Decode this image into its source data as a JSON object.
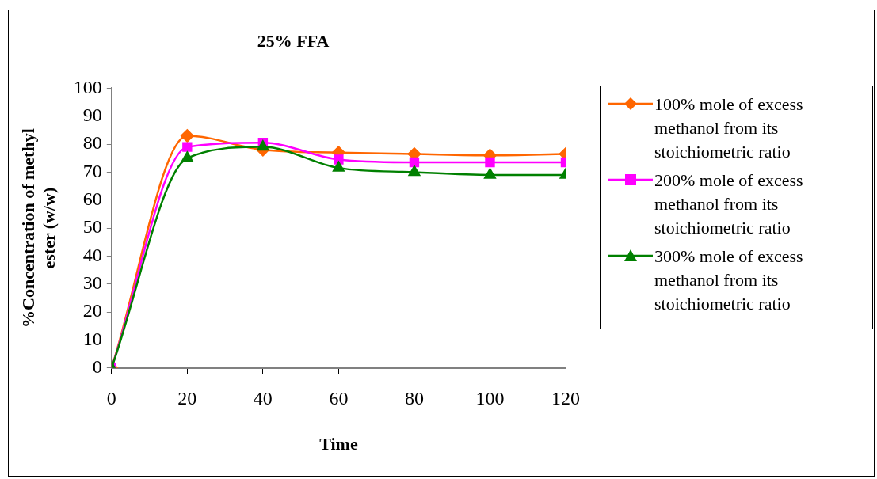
{
  "chart_data": {
    "type": "line",
    "title": "25% FFA",
    "xlabel": "Time",
    "ylabel": "%Concentration of methyl ester (w/w)",
    "x": [
      0,
      20,
      40,
      60,
      80,
      100,
      120
    ],
    "xlim": [
      0,
      120
    ],
    "xticks": [
      0,
      20,
      40,
      60,
      80,
      100,
      120
    ],
    "ylim": [
      0,
      100
    ],
    "yticks": [
      0,
      10,
      20,
      30,
      40,
      50,
      60,
      70,
      80,
      90,
      100
    ],
    "grid": false,
    "legend": "right",
    "series": [
      {
        "name": "100% mole of excess methanol from its stoichiometric ratio",
        "color": "#ff6600",
        "marker": "diamond",
        "values": [
          0,
          83,
          78,
          77,
          76.5,
          76,
          76.5
        ]
      },
      {
        "name": "200% mole of excess methanol from its stoichiometric ratio",
        "color": "#ff00ff",
        "marker": "square",
        "values": [
          0,
          79,
          80.5,
          74.5,
          73.5,
          73.5,
          73.5
        ]
      },
      {
        "name": "300% mole of excess methanol from its stoichiometric ratio",
        "color": "#008000",
        "marker": "triangle",
        "values": [
          0,
          75,
          79,
          71.5,
          70,
          69,
          69
        ]
      }
    ]
  }
}
